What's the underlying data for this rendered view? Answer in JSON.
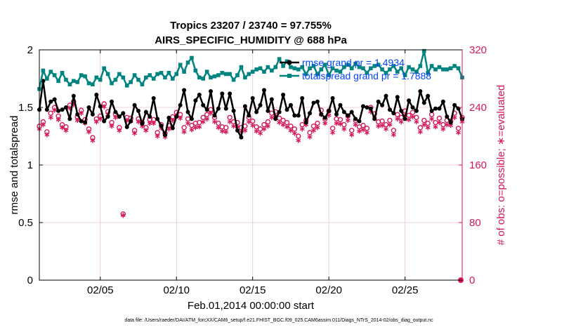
{
  "chart_data": {
    "type": "line",
    "title_line1": "Tropics 23207 / 23740 = 97.755%",
    "title_line2": "AIRS_SPECIFIC_HUMIDITY @ 688 hPa",
    "xlabel": "Feb.01,2014 00:00:00 start",
    "ylabel_left": "rmse and totalspread",
    "ylabel_right": "# of obs: o=possible; ∗=evaluated",
    "footer": "data file: /Users/raeder/DAI/ATM_forcXX/CAM6_setup/f.e21.FHIST_BGC.f09_025.CAM6assim.011/Diags_NTrS_2014-02/obs_diag_output.nc",
    "xlim": [
      1,
      28.75
    ],
    "ylim_left": [
      0,
      2
    ],
    "ylim_right": [
      0,
      320
    ],
    "x_ticks": [
      5,
      10,
      15,
      20,
      25
    ],
    "x_tick_labels": [
      "02/05",
      "02/10",
      "02/15",
      "02/20",
      "02/25"
    ],
    "y_ticks_left": [
      0,
      0.5,
      1,
      1.5,
      2
    ],
    "y_tick_labels_left": [
      "0",
      "0.5",
      "1",
      "1.5",
      "2"
    ],
    "y_ticks_right": [
      0,
      80,
      160,
      240,
      320
    ],
    "y_tick_labels_right": [
      "0",
      "80",
      "160",
      "240",
      "320"
    ],
    "grid": true,
    "colors": {
      "rmse": "#000000",
      "spread": "#00847f",
      "obs": "#d6185a",
      "legend_text": "#0044ff",
      "grid": "#e8c4cc"
    },
    "x_start": 1.0,
    "x_step": 0.25,
    "legend": [
      {
        "series": "rmse",
        "label": "rmse grand pr = 1.4934"
      },
      {
        "series": "spread",
        "label": "totalspread grand pr = 1.7888"
      }
    ],
    "series": [
      {
        "name": "rmse",
        "axis": "left",
        "values": [
          1.48,
          1.73,
          1.48,
          1.55,
          1.57,
          1.47,
          1.48,
          1.5,
          1.4,
          1.6,
          1.44,
          1.38,
          1.37,
          1.5,
          1.44,
          1.61,
          1.51,
          1.38,
          1.42,
          1.55,
          1.46,
          1.42,
          1.45,
          1.33,
          1.38,
          1.52,
          1.47,
          1.36,
          1.46,
          1.42,
          1.58,
          1.4,
          1.34,
          1.26,
          1.41,
          1.32,
          1.42,
          1.52,
          1.65,
          1.46,
          1.4,
          1.56,
          1.61,
          1.52,
          1.48,
          1.64,
          1.43,
          1.49,
          1.62,
          1.49,
          1.62,
          1.47,
          1.3,
          1.24,
          1.51,
          1.43,
          1.58,
          1.46,
          1.52,
          1.65,
          1.47,
          1.57,
          1.4,
          1.46,
          1.61,
          1.48,
          1.52,
          1.43,
          1.43,
          1.58,
          1.37,
          1.45,
          1.54,
          1.55,
          1.44,
          1.41,
          1.47,
          1.58,
          1.44,
          1.52,
          1.46,
          1.43,
          1.46,
          1.4,
          1.38,
          1.51,
          1.5,
          1.49,
          1.4,
          1.55,
          1.52,
          1.6,
          1.48,
          1.45,
          1.59,
          1.47,
          1.4,
          1.56,
          1.5,
          1.47,
          1.64,
          1.54,
          1.6,
          1.47,
          1.49,
          1.49,
          1.55,
          1.42,
          1.37,
          1.52,
          1.49,
          1.4
        ]
      },
      {
        "name": "spread",
        "axis": "left",
        "values": [
          1.66,
          1.82,
          1.75,
          1.81,
          1.78,
          1.73,
          1.8,
          1.74,
          1.7,
          1.73,
          1.72,
          1.78,
          1.77,
          1.71,
          1.7,
          1.76,
          1.74,
          1.84,
          1.79,
          1.71,
          1.74,
          1.79,
          1.76,
          1.69,
          1.72,
          1.78,
          1.74,
          1.7,
          1.76,
          1.78,
          1.75,
          1.79,
          1.8,
          1.76,
          1.8,
          1.75,
          1.79,
          1.87,
          1.81,
          1.89,
          1.93,
          1.82,
          1.76,
          1.75,
          1.81,
          1.76,
          1.77,
          1.78,
          1.8,
          1.79,
          1.79,
          1.74,
          1.78,
          1.85,
          1.76,
          1.79,
          1.81,
          1.83,
          1.84,
          1.81,
          1.85,
          1.82,
          1.85,
          1.92,
          1.86,
          1.9,
          1.85,
          1.84,
          1.83,
          1.85,
          1.79,
          1.84,
          1.86,
          1.79,
          1.83,
          1.87,
          1.78,
          1.84,
          1.82,
          1.81,
          1.85,
          1.87,
          1.84,
          1.88,
          1.85,
          1.84,
          1.8,
          1.84,
          1.86,
          1.87,
          1.83,
          1.8,
          1.83,
          1.86,
          1.81,
          1.84,
          1.78,
          1.85,
          1.83,
          1.81,
          1.86,
          1.99,
          1.8,
          1.86,
          1.83,
          1.85,
          1.83,
          1.83,
          1.84,
          1.86,
          1.84,
          1.76
        ]
      },
      {
        "name": "obs_possible",
        "axis": "right",
        "marker": "circle",
        "values": [
          214,
          220,
          206,
          232,
          240,
          228,
          216,
          213,
          243,
          248,
          227,
          236,
          223,
          210,
          198,
          224,
          228,
          245,
          234,
          219,
          231,
          212,
          92,
          226,
          225,
          208,
          224,
          219,
          212,
          223,
          223,
          205,
          216,
          204,
          215,
          227,
          233,
          230,
          212,
          224,
          215,
          218,
          219,
          226,
          230,
          237,
          226,
          218,
          213,
          212,
          226,
          220,
          219,
          212,
          214,
          226,
          221,
          213,
          210,
          216,
          220,
          232,
          234,
          225,
          222,
          219,
          214,
          210,
          200,
          216,
          222,
          205,
          214,
          218,
          236,
          224,
          235,
          211,
          224,
          223,
          216,
          228,
          208,
          222,
          213,
          215,
          211,
          240,
          231,
          220,
          221,
          216,
          222,
          208,
          230,
          226,
          235,
          229,
          233,
          226,
          212,
          222,
          218,
          230,
          219,
          225,
          216,
          222,
          221,
          232,
          211,
          226
        ]
      },
      {
        "name": "obs_evaluated",
        "axis": "right",
        "marker": "asterisk",
        "values": [
          210,
          216,
          202,
          226,
          236,
          223,
          212,
          208,
          239,
          244,
          222,
          232,
          218,
          206,
          194,
          220,
          224,
          241,
          230,
          214,
          226,
          208,
          90,
          222,
          221,
          204,
          220,
          214,
          208,
          218,
          218,
          200,
          211,
          199,
          210,
          222,
          228,
          225,
          206,
          218,
          209,
          212,
          213,
          220,
          224,
          232,
          220,
          212,
          207,
          206,
          220,
          214,
          213,
          206,
          208,
          220,
          215,
          207,
          204,
          210,
          214,
          226,
          228,
          219,
          216,
          213,
          208,
          204,
          194,
          210,
          216,
          199,
          208,
          212,
          230,
          218,
          229,
          205,
          218,
          217,
          210,
          222,
          202,
          216,
          207,
          209,
          205,
          234,
          225,
          214,
          215,
          210,
          216,
          202,
          224,
          220,
          229,
          223,
          227,
          220,
          206,
          216,
          212,
          224,
          213,
          219,
          210,
          216,
          215,
          226,
          205,
          220
        ]
      }
    ]
  }
}
